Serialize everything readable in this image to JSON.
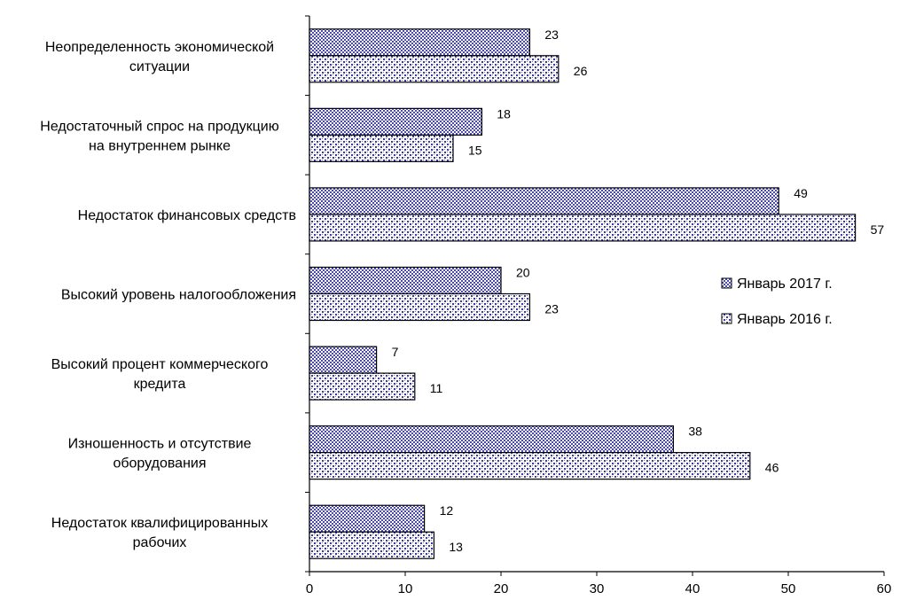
{
  "chart_data": {
    "type": "bar",
    "orientation": "horizontal",
    "categories": [
      [
        "Неопределенность экономической",
        "ситуации"
      ],
      [
        "Недостаточный спрос на продукцию",
        "на внутреннем рынке"
      ],
      [
        "Недостаток финансовых средств"
      ],
      [
        "Высокий уровень налогообложения"
      ],
      [
        "Высокий процент коммерческого",
        "кредита"
      ],
      [
        "Изношенность и отсутствие",
        "оборудования"
      ],
      [
        "Недостаток квалифицированных",
        "рабочих"
      ]
    ],
    "series": [
      {
        "name": "Январь 2017 г.",
        "values": [
          23,
          18,
          49,
          20,
          7,
          38,
          12
        ],
        "color": "#4a4ab0",
        "pattern": "crosshatch"
      },
      {
        "name": "Январь 2016 г.",
        "values": [
          26,
          15,
          57,
          23,
          11,
          46,
          13
        ],
        "color": "#3a3aa0",
        "pattern": "dots"
      }
    ],
    "xlim": [
      0,
      60
    ],
    "xticks": [
      0,
      10,
      20,
      30,
      40,
      50,
      60
    ],
    "grid": false,
    "legend_position": "right"
  }
}
